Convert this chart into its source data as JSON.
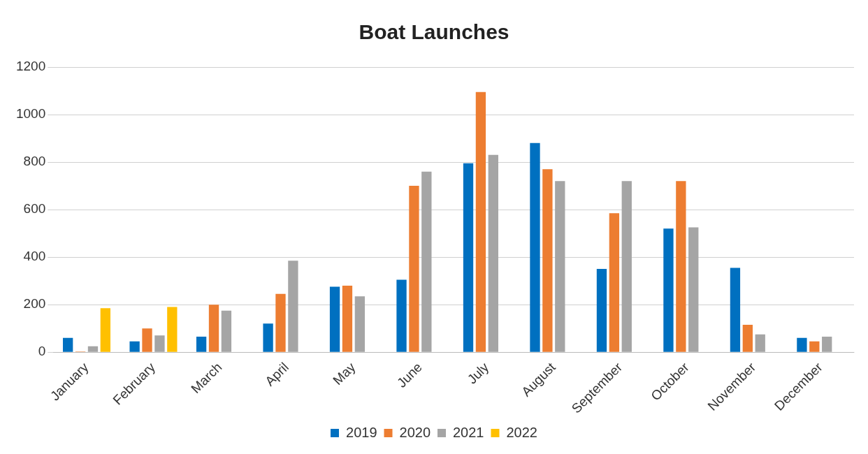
{
  "chart_data": {
    "type": "bar",
    "title": "Boat Launches",
    "categories": [
      "January",
      "February",
      "March",
      "April",
      "May",
      "June",
      "July",
      "August",
      "September",
      "October",
      "November",
      "December"
    ],
    "series": [
      {
        "name": "2019",
        "color": "#0070c0",
        "values": [
          60,
          45,
          65,
          120,
          275,
          305,
          795,
          880,
          350,
          520,
          355,
          60
        ]
      },
      {
        "name": "2020",
        "color": "#ed7d31",
        "values": [
          3,
          100,
          200,
          245,
          280,
          700,
          1095,
          770,
          585,
          720,
          115,
          45
        ]
      },
      {
        "name": "2021",
        "color": "#a5a5a5",
        "values": [
          25,
          70,
          175,
          385,
          235,
          760,
          830,
          720,
          720,
          525,
          75,
          65
        ]
      },
      {
        "name": "2022",
        "color": "#ffc000",
        "values": [
          185,
          190,
          null,
          null,
          null,
          null,
          null,
          null,
          null,
          null,
          null,
          null
        ]
      }
    ],
    "ylim": [
      0,
      1200
    ],
    "yticks": [
      0,
      200,
      400,
      600,
      800,
      1000,
      1200
    ],
    "grid": "y",
    "legend": "bottom"
  }
}
